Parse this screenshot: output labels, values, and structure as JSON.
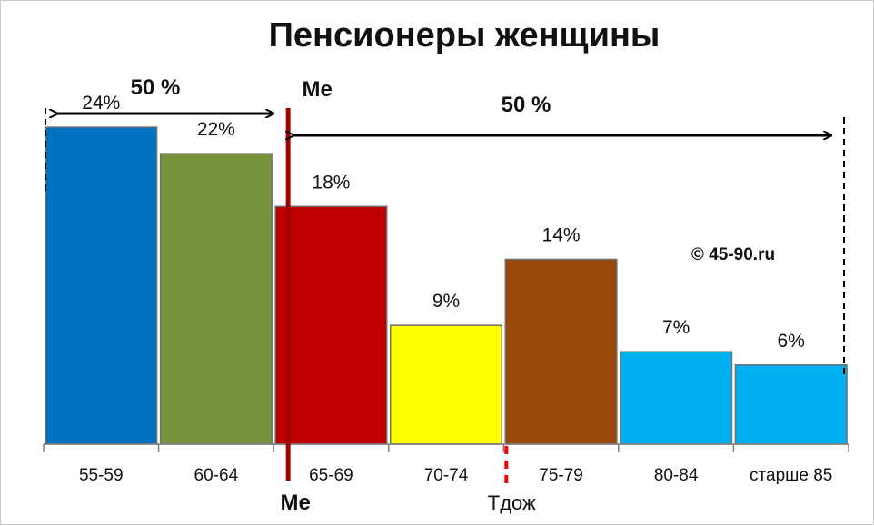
{
  "chart_data": {
    "type": "bar",
    "title": "Пенсионеры женщины",
    "categories": [
      "55-59",
      "60-64",
      "65-69",
      "70-74",
      "75-79",
      "80-84",
      "старше 85"
    ],
    "values": [
      24,
      22,
      18,
      9,
      14,
      7,
      6
    ],
    "value_labels": [
      "24%",
      "22%",
      "18%",
      "9%",
      "14%",
      "7%",
      "6%"
    ],
    "bar_colors": [
      "#0070c0",
      "#77933c",
      "#c00000",
      "#ffff00",
      "#984807",
      "#00b0f0",
      "#00b0f0"
    ],
    "ylim": [
      0,
      26
    ],
    "grid": false,
    "legend": "none",
    "annotations": {
      "median_label_top": "Me",
      "median_label_bottom": "Me",
      "median_color": "#a00000",
      "median_position_between": [
        "60-64",
        "65-69"
      ],
      "left_share": "50 %",
      "right_share": "50 %",
      "tdozh_label": "Tдож",
      "tdozh_color": "#ff0000",
      "tdozh_position_between": [
        "70-74",
        "75-79"
      ],
      "copyright": "© 45-90.ru"
    }
  }
}
